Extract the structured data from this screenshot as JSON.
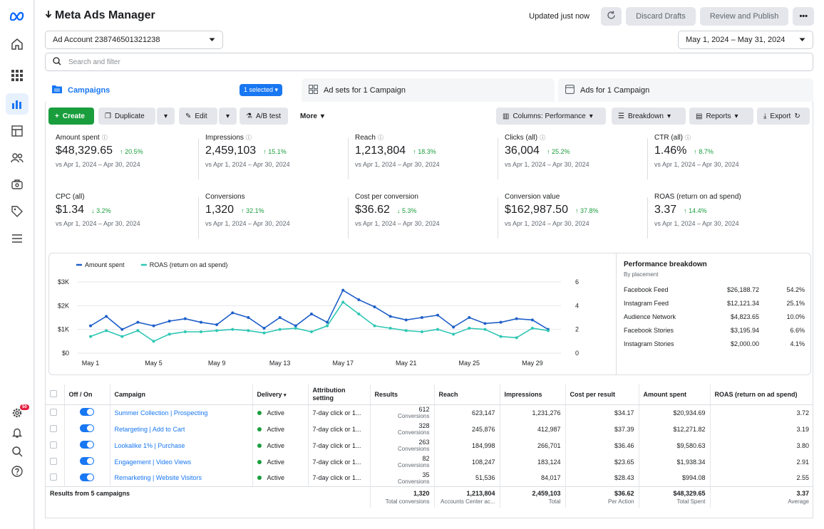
{
  "app": {
    "title": "Meta Ads Manager",
    "updated": "Updated just now",
    "discard": "Discard Drafts",
    "review": "Review and Publish",
    "notif_badge": "50"
  },
  "account": {
    "label": "Ad Account 238746501321238"
  },
  "date_range": {
    "label": "May 1, 2024 – May 31, 2024"
  },
  "search": {
    "placeholder": "Search and filter"
  },
  "tabs": {
    "campaigns": "Campaigns",
    "selected": "1 selected",
    "adsets": "Ad sets for 1 Campaign",
    "ads": "Ads for 1 Campaign"
  },
  "toolbar": {
    "create": "Create",
    "duplicate": "Duplicate",
    "edit": "Edit",
    "ab_test": "A/B test",
    "more": "More",
    "columns": "Columns: Performance",
    "breakdown": "Breakdown",
    "reports": "Reports",
    "export": "Export"
  },
  "metrics": [
    {
      "label": "Amount spent",
      "value": "$48,329.65",
      "change": "20.5%",
      "dir": "up",
      "compare": "vs Apr 1, 2024 – Apr 30, 2024"
    },
    {
      "label": "Impressions",
      "value": "2,459,103",
      "change": "15.1%",
      "dir": "up",
      "compare": "vs Apr 1, 2024 – Apr 30, 2024"
    },
    {
      "label": "Reach",
      "value": "1,213,804",
      "change": "18.3%",
      "dir": "up",
      "compare": "vs Apr 1, 2024 – Apr 30, 2024"
    },
    {
      "label": "Clicks (all)",
      "value": "36,004",
      "change": "25.2%",
      "dir": "up",
      "compare": "vs Apr 1, 2024 – Apr 30, 2024"
    },
    {
      "label": "CTR (all)",
      "value": "1.46%",
      "change": "8.7%",
      "dir": "up",
      "compare": "vs Apr 1, 2024 – Apr 30, 2024"
    },
    {
      "label": "CPC (all)",
      "value": "$1.34",
      "change": "3.2%",
      "dir": "down",
      "compare": "vs Apr 1, 2024 – Apr 30, 2024"
    },
    {
      "label": "Conversions",
      "value": "1,320",
      "change": "32.1%",
      "dir": "up",
      "compare": "vs Apr 1, 2024 – Apr 30, 2024"
    },
    {
      "label": "Cost per conversion",
      "value": "$36.62",
      "change": "5.3%",
      "dir": "down",
      "compare": "vs Apr 1, 2024 – Apr 30, 2024"
    },
    {
      "label": "Conversion value",
      "value": "$162,987.50",
      "change": "37.8%",
      "dir": "up",
      "compare": "vs Apr 1, 2024 – Apr 30, 2024"
    },
    {
      "label": "ROAS (return on ad spend)",
      "value": "3.37",
      "change": "14.4%",
      "dir": "up",
      "compare": "vs Apr 1, 2024 – Apr 30, 2024"
    }
  ],
  "chart_data": {
    "type": "line",
    "x": [
      "May 1",
      "May 2",
      "May 3",
      "May 4",
      "May 5",
      "May 6",
      "May 7",
      "May 8",
      "May 9",
      "May 10",
      "May 11",
      "May 12",
      "May 13",
      "May 14",
      "May 15",
      "May 16",
      "May 17",
      "May 18",
      "May 19",
      "May 20",
      "May 21",
      "May 22",
      "May 23",
      "May 24",
      "May 25",
      "May 26",
      "May 27",
      "May 28",
      "May 29",
      "May 30"
    ],
    "xticks": [
      "May 1",
      "May 5",
      "May 9",
      "May 13",
      "May 17",
      "May 21",
      "May 25",
      "May 29"
    ],
    "yticks_left": [
      "$0",
      "$1K",
      "$2K",
      "$3K"
    ],
    "yticks_right": [
      "0",
      "2",
      "4",
      "6"
    ],
    "ylim_left": [
      0,
      3000
    ],
    "ylim_right": [
      0,
      6
    ],
    "legend_position": "top-left",
    "series": [
      {
        "name": "Amount spent",
        "axis": "left",
        "color": "#1f5fc9",
        "values": [
          1150,
          1550,
          1000,
          1300,
          1150,
          1350,
          1450,
          1300,
          1200,
          1700,
          1500,
          1050,
          1500,
          1150,
          1650,
          1300,
          2650,
          2250,
          1950,
          1550,
          1400,
          1500,
          1600,
          1100,
          1500,
          1250,
          1300,
          1450,
          1400,
          1000
        ]
      },
      {
        "name": "ROAS (return on ad spend)",
        "axis": "right",
        "color": "#2ec7b4",
        "values": [
          1.4,
          1.9,
          1.4,
          1.9,
          1.0,
          1.6,
          1.8,
          1.8,
          1.9,
          2.0,
          1.9,
          1.7,
          2.0,
          2.1,
          1.8,
          2.3,
          4.3,
          3.3,
          2.3,
          2.1,
          1.9,
          1.8,
          2.0,
          1.6,
          2.1,
          2.0,
          1.4,
          1.3,
          2.1,
          1.9
        ]
      }
    ]
  },
  "breakdown": {
    "title": "Performance breakdown",
    "subtitle": "By placement",
    "rows": [
      {
        "name": "Facebook Feed",
        "amount": "$26,188.72",
        "pct": "54.2%"
      },
      {
        "name": "Instagram Feed",
        "amount": "$12,121.34",
        "pct": "25.1%"
      },
      {
        "name": "Audience Network",
        "amount": "$4,823.65",
        "pct": "10.0%"
      },
      {
        "name": "Facebook Stories",
        "amount": "$3,195.94",
        "pct": "6.6%"
      },
      {
        "name": "Instagram Stories",
        "amount": "$2,000.00",
        "pct": "4.1%"
      }
    ]
  },
  "table": {
    "headers": {
      "onoff": "Off / On",
      "campaign": "Campaign",
      "delivery": "Delivery",
      "attribution": "Attribution setting",
      "results": "Results",
      "reach": "Reach",
      "impressions": "Impressions",
      "cpr": "Cost per result",
      "spent": "Amount spent",
      "roas": "ROAS (return on ad spend)"
    },
    "rows": [
      {
        "campaign": "Summer Collection | Prospecting",
        "delivery": "Active",
        "attribution": "7-day click or 1...",
        "results": "612",
        "results_sub": "Conversions",
        "reach": "623,147",
        "impressions": "1,231,276",
        "cpr": "$34.17",
        "spent": "$20,934.69",
        "roas": "3.72"
      },
      {
        "campaign": "Retargeting | Add to Cart",
        "delivery": "Active",
        "attribution": "7-day click or 1...",
        "results": "328",
        "results_sub": "Conversions",
        "reach": "245,876",
        "impressions": "412,987",
        "cpr": "$37.39",
        "spent": "$12,271.82",
        "roas": "3.19"
      },
      {
        "campaign": "Lookalike 1% | Purchase",
        "delivery": "Active",
        "attribution": "7-day click or 1...",
        "results": "263",
        "results_sub": "Conversions",
        "reach": "184,998",
        "impressions": "266,701",
        "cpr": "$36.46",
        "spent": "$9,580.63",
        "roas": "3.80"
      },
      {
        "campaign": "Engagement | Video Views",
        "delivery": "Active",
        "attribution": "7-day click or 1...",
        "results": "82",
        "results_sub": "Conversions",
        "reach": "108,247",
        "impressions": "183,124",
        "cpr": "$23.65",
        "spent": "$1,938.34",
        "roas": "2.91"
      },
      {
        "campaign": "Remarketing | Website Visitors",
        "delivery": "Active",
        "attribution": "7-day click or 1...",
        "results": "35",
        "results_sub": "Conversions",
        "reach": "51,536",
        "impressions": "84,017",
        "cpr": "$28.43",
        "spent": "$994.08",
        "roas": "2.55"
      }
    ],
    "totals": {
      "label": "Results from 5 campaigns",
      "results": "1,320",
      "results_sub": "Total conversions",
      "reach": "1,213,804",
      "reach_sub": "Accounts Center ac...",
      "impressions": "2,459,103",
      "impressions_sub": "Total",
      "cpr": "$36.62",
      "cpr_sub": "Per Action",
      "spent": "$48,329.65",
      "spent_sub": "Total Spent",
      "roas": "3.37",
      "roas_sub": "Average"
    }
  }
}
